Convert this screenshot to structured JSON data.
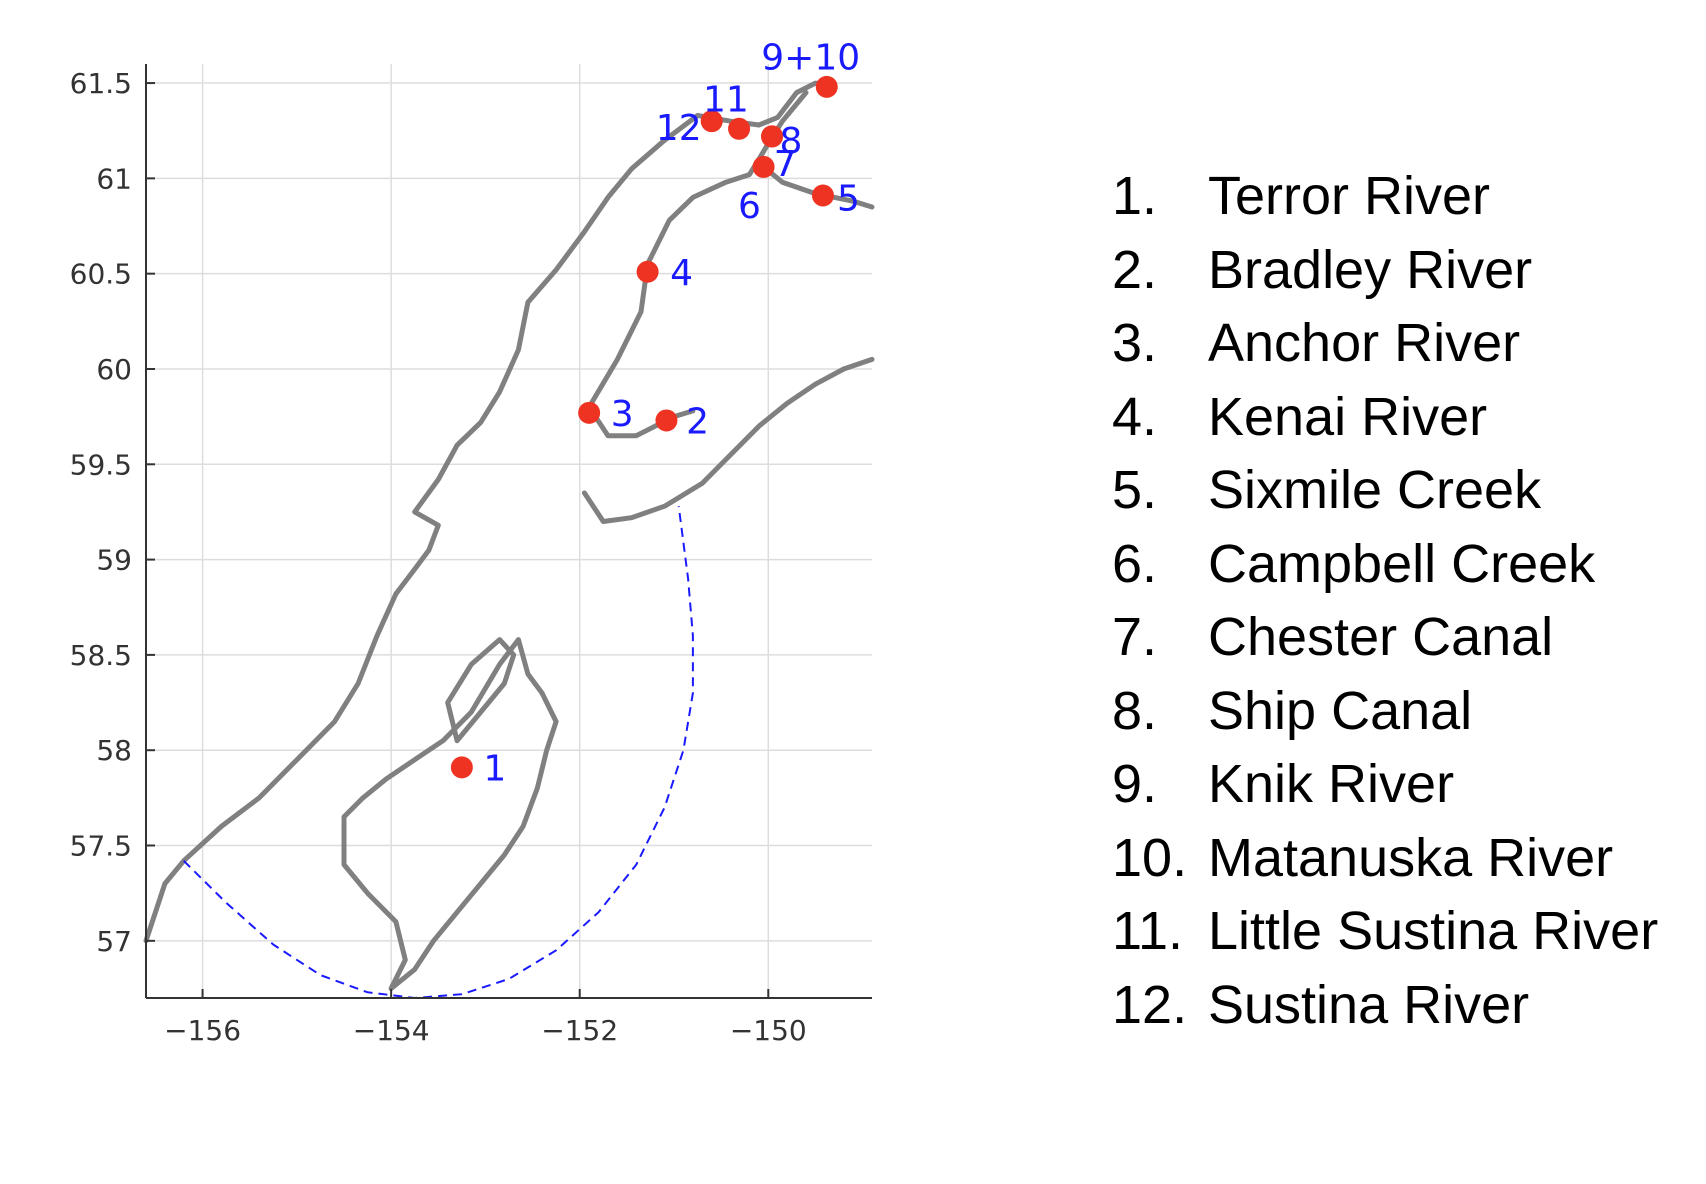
{
  "colors": {
    "coast": "#808080",
    "site_marker": "#ee3322",
    "site_label": "#1a1aff",
    "boundary": "#1a1aff",
    "grid": "#dddddd",
    "axis": "#333333"
  },
  "chart_data": {
    "type": "scatter",
    "title": "",
    "xlabel": "",
    "ylabel": "",
    "xlim": [
      -156.6,
      -148.9
    ],
    "ylim": [
      56.7,
      61.6
    ],
    "grid": true,
    "x_ticks": [
      -156,
      -154,
      -152,
      -150
    ],
    "y_ticks": [
      57,
      57.5,
      58,
      58.5,
      59,
      59.5,
      60,
      60.5,
      61,
      61.5
    ],
    "x_tick_labels": [
      "−156",
      "−154",
      "−152",
      "−150"
    ],
    "y_tick_labels": [
      "57",
      "57.5",
      "58",
      "58.5",
      "59",
      "59.5",
      "60",
      "60.5",
      "61",
      "61.5"
    ],
    "sites": [
      {
        "label": "1",
        "lon": -153.25,
        "lat": 57.91
      },
      {
        "label": "2",
        "lon": -151.08,
        "lat": 59.73
      },
      {
        "label": "3",
        "lon": -151.9,
        "lat": 59.77
      },
      {
        "label": "4",
        "lon": -151.28,
        "lat": 60.51
      },
      {
        "label": "5",
        "lon": -149.42,
        "lat": 60.91
      },
      {
        "label": "6",
        "lon": -150.05,
        "lat": 61.06
      },
      {
        "label": "7",
        "lon": -149.96,
        "lat": 61.22
      },
      {
        "label": "8",
        "lon": -149.96,
        "lat": 61.22
      },
      {
        "label": "9+10",
        "lon": -149.38,
        "lat": 61.48
      },
      {
        "label": "11",
        "lon": -150.31,
        "lat": 61.26
      },
      {
        "label": "12",
        "lon": -150.6,
        "lat": 61.3
      }
    ],
    "site_labels": [
      {
        "text": "1",
        "lon": -152.9,
        "lat": 57.91
      },
      {
        "text": "2",
        "lon": -150.75,
        "lat": 59.73
      },
      {
        "text": "3",
        "lon": -151.55,
        "lat": 59.77
      },
      {
        "text": "4",
        "lon": -150.92,
        "lat": 60.51
      },
      {
        "text": "5",
        "lon": -149.15,
        "lat": 60.9
      },
      {
        "text": "6",
        "lon": -150.2,
        "lat": 60.86
      },
      {
        "text": "7",
        "lon": -149.82,
        "lat": 61.08
      },
      {
        "text": "8",
        "lon": -149.76,
        "lat": 61.2
      },
      {
        "text": "9+10",
        "lon": -149.55,
        "lat": 61.64
      },
      {
        "text": "11",
        "lon": -150.45,
        "lat": 61.42
      },
      {
        "text": "12",
        "lon": -150.95,
        "lat": 61.27
      }
    ],
    "coast_mainland": [
      [
        -156.6,
        57.0
      ],
      [
        -156.4,
        57.3
      ],
      [
        -156.2,
        57.42
      ],
      [
        -155.8,
        57.6
      ],
      [
        -155.4,
        57.75
      ],
      [
        -155.0,
        57.95
      ],
      [
        -154.6,
        58.15
      ],
      [
        -154.35,
        58.35
      ],
      [
        -154.15,
        58.6
      ],
      [
        -153.95,
        58.82
      ],
      [
        -153.75,
        58.95
      ],
      [
        -153.6,
        59.05
      ],
      [
        -153.5,
        59.18
      ],
      [
        -153.75,
        59.25
      ],
      [
        -153.5,
        59.42
      ],
      [
        -153.3,
        59.6
      ],
      [
        -153.05,
        59.72
      ],
      [
        -152.85,
        59.88
      ],
      [
        -152.65,
        60.1
      ],
      [
        -152.55,
        60.35
      ],
      [
        -152.25,
        60.52
      ],
      [
        -151.95,
        60.72
      ],
      [
        -151.7,
        60.9
      ],
      [
        -151.45,
        61.05
      ],
      [
        -151.1,
        61.2
      ],
      [
        -150.75,
        61.33
      ],
      [
        -150.4,
        61.3
      ],
      [
        -150.1,
        61.28
      ],
      [
        -149.9,
        61.32
      ],
      [
        -149.7,
        61.45
      ],
      [
        -149.5,
        61.5
      ],
      [
        -149.3,
        61.49
      ]
    ],
    "coast_kenai_west": [
      [
        -149.6,
        61.45
      ],
      [
        -149.85,
        61.3
      ],
      [
        -149.98,
        61.2
      ],
      [
        -150.1,
        61.1
      ],
      [
        -150.2,
        61.02
      ],
      [
        -150.45,
        60.98
      ],
      [
        -150.8,
        60.9
      ],
      [
        -151.05,
        60.78
      ],
      [
        -151.28,
        60.55
      ],
      [
        -151.35,
        60.3
      ],
      [
        -151.6,
        60.05
      ],
      [
        -151.9,
        59.8
      ],
      [
        -151.7,
        59.65
      ],
      [
        -151.4,
        59.65
      ],
      [
        -151.0,
        59.75
      ],
      [
        -150.8,
        59.78
      ]
    ],
    "coast_turnagain": [
      [
        -150.1,
        61.08
      ],
      [
        -149.85,
        60.98
      ],
      [
        -149.5,
        60.92
      ],
      [
        -149.1,
        60.88
      ],
      [
        -148.9,
        60.85
      ]
    ],
    "coast_kenai_south": [
      [
        -151.95,
        59.35
      ],
      [
        -151.75,
        59.2
      ],
      [
        -151.45,
        59.22
      ],
      [
        -151.1,
        59.28
      ],
      [
        -150.7,
        59.4
      ],
      [
        -150.4,
        59.55
      ],
      [
        -150.1,
        59.7
      ],
      [
        -149.8,
        59.82
      ],
      [
        -149.5,
        59.92
      ],
      [
        -149.2,
        60.0
      ],
      [
        -148.9,
        60.05
      ]
    ],
    "coast_kodiak": [
      [
        -154.0,
        56.75
      ],
      [
        -153.85,
        56.9
      ],
      [
        -153.95,
        57.1
      ],
      [
        -154.25,
        57.25
      ],
      [
        -154.5,
        57.4
      ],
      [
        -154.5,
        57.65
      ],
      [
        -154.3,
        57.75
      ],
      [
        -154.05,
        57.85
      ],
      [
        -153.75,
        57.95
      ],
      [
        -153.45,
        58.05
      ],
      [
        -153.15,
        58.2
      ],
      [
        -152.85,
        58.45
      ],
      [
        -152.65,
        58.58
      ],
      [
        -152.55,
        58.4
      ],
      [
        -152.4,
        58.3
      ],
      [
        -152.25,
        58.15
      ],
      [
        -152.35,
        58.0
      ],
      [
        -152.45,
        57.8
      ],
      [
        -152.6,
        57.6
      ],
      [
        -152.8,
        57.45
      ],
      [
        -153.05,
        57.3
      ],
      [
        -153.3,
        57.15
      ],
      [
        -153.55,
        57.0
      ],
      [
        -153.75,
        56.85
      ],
      [
        -154.0,
        56.75
      ]
    ],
    "coast_afognak": [
      [
        -153.3,
        58.05
      ],
      [
        -153.05,
        58.2
      ],
      [
        -152.8,
        58.35
      ],
      [
        -152.7,
        58.5
      ],
      [
        -152.85,
        58.58
      ],
      [
        -153.15,
        58.45
      ],
      [
        -153.4,
        58.25
      ],
      [
        -153.3,
        58.05
      ]
    ],
    "boundary": [
      [
        -156.2,
        57.42
      ],
      [
        -155.75,
        57.2
      ],
      [
        -155.25,
        56.98
      ],
      [
        -154.75,
        56.82
      ],
      [
        -154.25,
        56.73
      ],
      [
        -153.75,
        56.7
      ],
      [
        -153.25,
        56.72
      ],
      [
        -152.75,
        56.8
      ],
      [
        -152.25,
        56.95
      ],
      [
        -151.8,
        57.15
      ],
      [
        -151.4,
        57.4
      ],
      [
        -151.1,
        57.7
      ],
      [
        -150.9,
        58.0
      ],
      [
        -150.8,
        58.3
      ],
      [
        -150.8,
        58.6
      ],
      [
        -150.85,
        58.9
      ],
      [
        -150.95,
        59.28
      ]
    ]
  },
  "legend": {
    "items": [
      {
        "number": "1.",
        "name": "Terror River"
      },
      {
        "number": "2.",
        "name": "Bradley River"
      },
      {
        "number": "3.",
        "name": "Anchor River"
      },
      {
        "number": "4.",
        "name": "Kenai River"
      },
      {
        "number": "5.",
        "name": "Sixmile Creek"
      },
      {
        "number": "6.",
        "name": "Campbell Creek"
      },
      {
        "number": "7.",
        "name": "Chester Canal"
      },
      {
        "number": "8.",
        "name": "Ship Canal"
      },
      {
        "number": "9.",
        "name": "Knik River"
      },
      {
        "number": "10.",
        "name": "Matanuska River"
      },
      {
        "number": "11.",
        "name": "Little Sustina River"
      },
      {
        "number": "12.",
        "name": "Sustina River"
      }
    ]
  }
}
